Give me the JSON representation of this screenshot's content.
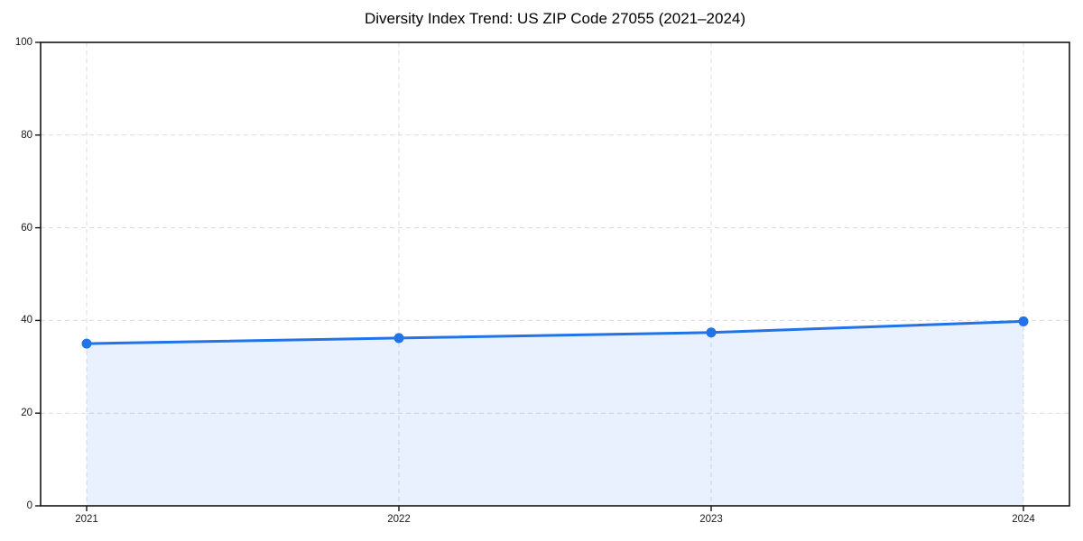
{
  "chart_data": {
    "type": "line",
    "title": "Diversity Index Trend: US ZIP Code 27055 (2021–2024)",
    "categories": [
      "2021",
      "2022",
      "2023",
      "2024"
    ],
    "series": [
      {
        "name": "Diversity Index",
        "values": [
          35,
          36.2,
          37.4,
          39.8
        ]
      }
    ],
    "xlabel": "",
    "ylabel": "",
    "ylim": [
      0,
      100
    ],
    "yticks": [
      0,
      20,
      40,
      60,
      80,
      100
    ],
    "grid": true,
    "grid_style": "dashed",
    "area_fill": true,
    "marker": "circle",
    "legend_position": "none",
    "colors": {
      "line": "#2173e8",
      "marker": "#2173e8",
      "fill": "#2173e8",
      "fill_opacity": 0.1,
      "grid": "#dcdcdc",
      "axis": "#141414",
      "tick_text": "#1a1a1a",
      "title_text": "#000000",
      "background": "#ffffff"
    }
  }
}
